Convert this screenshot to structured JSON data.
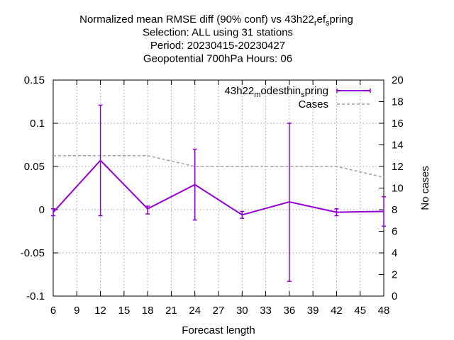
{
  "chart_data": {
    "type": "line",
    "title_lines": [
      "Normalized mean RMSE diff (90% conf) vs 43h22_ref_spring",
      "Selection: ALL using    31 stations",
      "Period: 20230415-20230427",
      "Geopotential 700hPa   Hours:  06"
    ],
    "title_runs": [
      {
        "text": "Normalized mean RMSE diff (90% conf) vs 43h22",
        "sub": false
      },
      {
        "text": "r",
        "sub": true
      },
      {
        "text": "ef",
        "sub": false
      },
      {
        "text": "s",
        "sub": true
      },
      {
        "text": "pring",
        "sub": false
      }
    ],
    "xlabel": "Forecast length",
    "ylabel_right": "No cases",
    "xlim": [
      6,
      48
    ],
    "ylim": [
      -0.1,
      0.15
    ],
    "y2lim": [
      0,
      20
    ],
    "x_ticks": [
      6,
      9,
      12,
      15,
      18,
      21,
      24,
      27,
      30,
      33,
      36,
      39,
      42,
      45,
      48
    ],
    "x_tick_labels": [
      "6",
      "9",
      "12",
      "15",
      "18",
      "21",
      "24",
      "27",
      "30",
      "33",
      "36",
      "39",
      "42",
      "45",
      "48"
    ],
    "y_ticks": [
      -0.1,
      -0.05,
      0,
      0.05,
      0.1,
      0.15
    ],
    "y_tick_labels": [
      "-0.1",
      "-0.05",
      "0",
      "0.05",
      "0.1",
      "0.15"
    ],
    "y2_ticks": [
      0,
      2,
      4,
      6,
      8,
      10,
      12,
      14,
      16,
      18,
      20
    ],
    "y2_tick_labels": [
      "0",
      "2",
      "4",
      "6",
      "8",
      "10",
      "12",
      "14",
      "16",
      "18",
      "20"
    ],
    "grid": true,
    "legend_position": "top-right",
    "series": [
      {
        "name": "43h22_modesthin_spring",
        "name_runs": [
          {
            "text": "43h22",
            "sub": false
          },
          {
            "text": "m",
            "sub": true
          },
          {
            "text": "odesthin",
            "sub": false
          },
          {
            "text": "s",
            "sub": true
          },
          {
            "text": "pring",
            "sub": false
          }
        ],
        "style": "errorbars",
        "color": "#9400d3",
        "x": [
          6,
          12,
          18,
          24,
          30,
          36,
          42,
          48
        ],
        "y": [
          -0.003,
          0.057,
          0.001,
          0.029,
          -0.006,
          0.009,
          -0.003,
          -0.002
        ],
        "y_low": [
          -0.007,
          -0.007,
          -0.005,
          -0.012,
          -0.01,
          -0.083,
          -0.007,
          -0.019
        ],
        "y_high": [
          0.001,
          0.121,
          0.004,
          0.07,
          -0.002,
          0.1,
          0.001,
          0.015
        ]
      },
      {
        "name": "Cases",
        "style": "dashed",
        "color": "#a0a0a0",
        "axis": "right",
        "x": [
          6,
          12,
          18,
          24,
          30,
          36,
          42,
          48
        ],
        "y": [
          13,
          13,
          13,
          12,
          12,
          12,
          12,
          11
        ]
      }
    ]
  }
}
